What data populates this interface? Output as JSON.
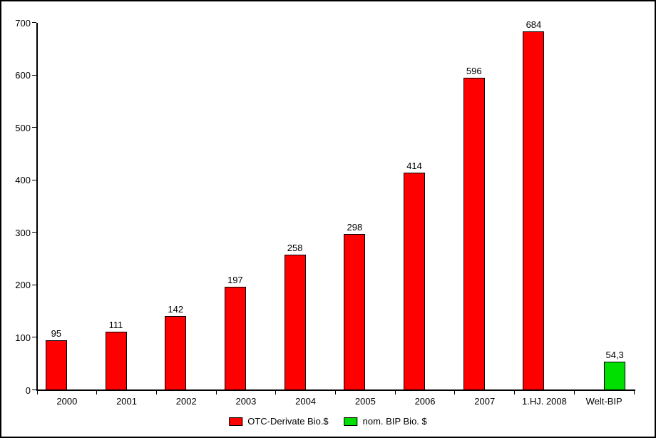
{
  "chart_data": {
    "type": "bar",
    "title": "",
    "xlabel": "",
    "ylabel": "",
    "categories": [
      "2000",
      "2001",
      "2002",
      "2003",
      "2004",
      "2005",
      "2006",
      "2007",
      "1.HJ. 2008",
      "Welt-BIP"
    ],
    "series": [
      {
        "name": "OTC-Derivate Bio.$",
        "color": "#ff0000",
        "values": [
          95,
          111,
          142,
          197,
          258,
          298,
          414,
          596,
          684,
          null
        ]
      },
      {
        "name": "nom. BIP Bio. $",
        "color": "#00e000",
        "values": [
          null,
          null,
          null,
          null,
          null,
          null,
          null,
          null,
          null,
          54.3
        ]
      }
    ],
    "value_labels": [
      "95",
      "111",
      "142",
      "197",
      "258",
      "298",
      "414",
      "596",
      "684",
      "54,3"
    ],
    "y_ticks": [
      0,
      100,
      200,
      300,
      400,
      500,
      600,
      700
    ],
    "ylim": [
      0,
      700
    ],
    "grid": false,
    "legend_position": "bottom"
  },
  "legend": {
    "items": [
      {
        "label": "OTC-Derivate Bio.$",
        "color": "#ff0000"
      },
      {
        "label": "nom. BIP Bio. $",
        "color": "#00e000"
      }
    ]
  },
  "colors": {
    "axis": "#000000",
    "background": "#ffffff",
    "bar_red": "#ff0000",
    "bar_green": "#00e000"
  }
}
